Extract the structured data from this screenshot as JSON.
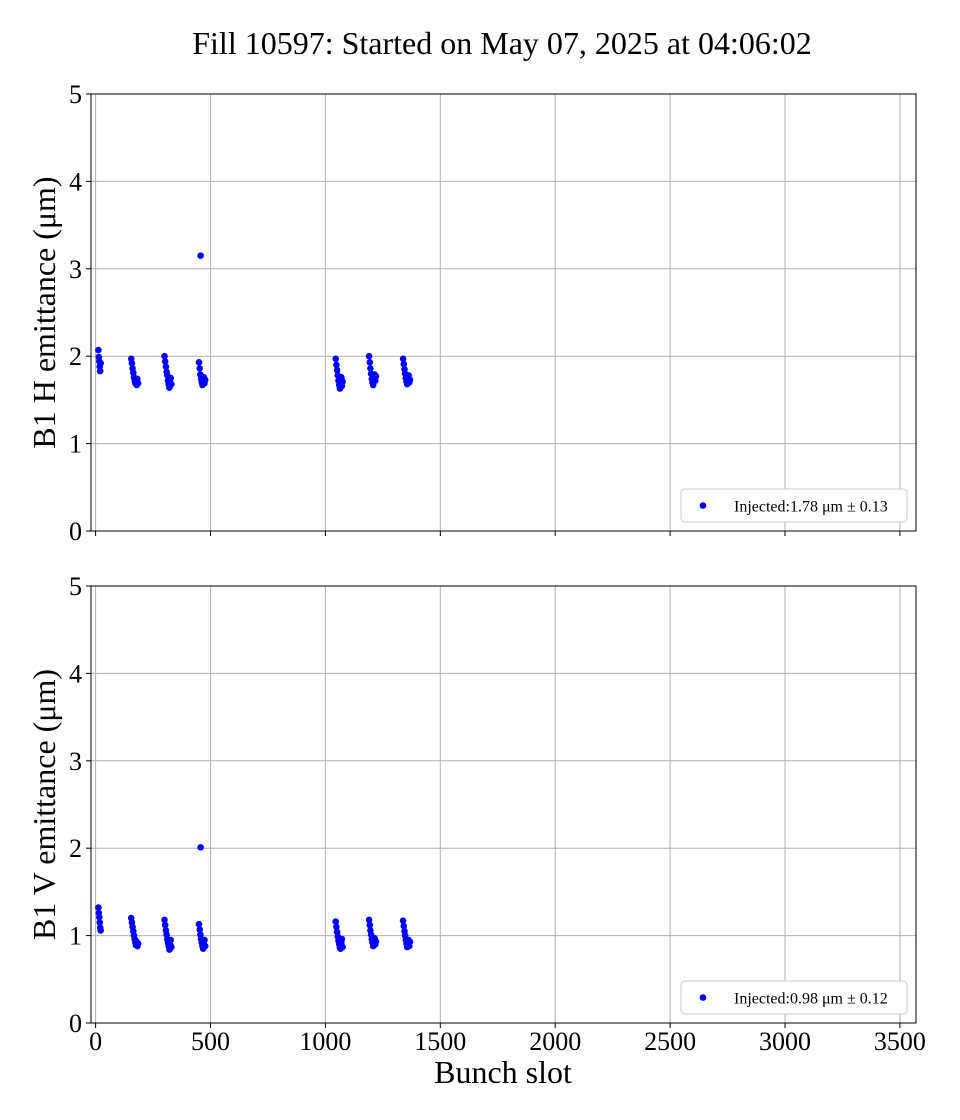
{
  "figure": {
    "title": "Fill 10597: Started on May 07, 2025 at 04:06:02",
    "xlabel": "Bunch slot"
  },
  "colors": {
    "marker": "#0000ff",
    "grid": "#b0b0b0",
    "axes": "#000000"
  },
  "chart_data": [
    {
      "type": "scatter",
      "ylabel": "B1 H emittance (μm)",
      "xlim": [
        -20,
        3570
      ],
      "ylim": [
        0,
        5
      ],
      "xticks": [
        0,
        500,
        1000,
        1500,
        2000,
        2500,
        3000,
        3500
      ],
      "yticks": [
        0,
        1,
        2,
        3,
        4,
        5
      ],
      "grid": true,
      "legend_position": "lower right",
      "series": [
        {
          "name": "Injected:1.78 μm ± 0.13",
          "x": [
            12,
            14,
            16,
            18,
            20,
            22,
            155,
            158,
            161,
            164,
            167,
            170,
            173,
            176,
            179,
            182,
            185,
            300,
            303,
            306,
            309,
            312,
            315,
            318,
            321,
            324,
            327,
            330,
            450,
            453,
            456,
            459,
            462,
            465,
            468,
            471,
            474,
            477,
            1045,
            1048,
            1051,
            1054,
            1057,
            1060,
            1063,
            1066,
            1069,
            1072,
            1075,
            1190,
            1193,
            1196,
            1199,
            1202,
            1205,
            1208,
            1211,
            1214,
            1217,
            1220,
            1338,
            1341,
            1344,
            1347,
            1350,
            1353,
            1356,
            1359,
            1362,
            1365,
            1368,
            457
          ],
          "y": [
            2.07,
            1.99,
            1.94,
            1.88,
            1.83,
            1.92,
            1.97,
            1.92,
            1.86,
            1.81,
            1.76,
            1.72,
            1.69,
            1.71,
            1.67,
            1.74,
            1.69,
            2.0,
            1.94,
            1.88,
            1.82,
            1.78,
            1.72,
            1.68,
            1.64,
            1.7,
            1.75,
            1.68,
            1.93,
            1.86,
            1.79,
            1.74,
            1.7,
            1.67,
            1.72,
            1.76,
            1.69,
            1.73,
            1.97,
            1.9,
            1.84,
            1.78,
            1.72,
            1.67,
            1.63,
            1.7,
            1.76,
            1.66,
            1.71,
            2.0,
            1.93,
            1.86,
            1.8,
            1.74,
            1.7,
            1.67,
            1.75,
            1.79,
            1.72,
            1.77,
            1.97,
            1.91,
            1.85,
            1.8,
            1.75,
            1.71,
            1.68,
            1.74,
            1.78,
            1.7,
            1.73,
            3.15
          ]
        }
      ]
    },
    {
      "type": "scatter",
      "ylabel": "B1 V emittance (μm)",
      "xlim": [
        -20,
        3570
      ],
      "ylim": [
        0,
        5
      ],
      "xticks": [
        0,
        500,
        1000,
        1500,
        2000,
        2500,
        3000,
        3500
      ],
      "yticks": [
        0,
        1,
        2,
        3,
        4,
        5
      ],
      "grid": true,
      "legend_position": "lower right",
      "series": [
        {
          "name": "Injected:0.98 μm ± 0.12",
          "x": [
            12,
            14,
            16,
            18,
            20,
            22,
            155,
            158,
            161,
            164,
            167,
            170,
            173,
            176,
            179,
            182,
            185,
            300,
            303,
            306,
            309,
            312,
            315,
            318,
            321,
            324,
            327,
            330,
            450,
            453,
            456,
            459,
            462,
            465,
            468,
            471,
            474,
            477,
            1045,
            1048,
            1051,
            1054,
            1057,
            1060,
            1063,
            1066,
            1069,
            1072,
            1075,
            1190,
            1193,
            1196,
            1199,
            1202,
            1205,
            1208,
            1211,
            1214,
            1217,
            1220,
            1338,
            1341,
            1344,
            1347,
            1350,
            1353,
            1356,
            1359,
            1362,
            1365,
            1368,
            457
          ],
          "y": [
            1.32,
            1.26,
            1.21,
            1.15,
            1.09,
            1.06,
            1.2,
            1.15,
            1.1,
            1.05,
            1.0,
            0.96,
            0.92,
            0.89,
            0.93,
            0.88,
            0.91,
            1.18,
            1.12,
            1.06,
            1.01,
            0.96,
            0.92,
            0.88,
            0.84,
            0.9,
            0.95,
            0.87,
            1.13,
            1.07,
            1.01,
            0.96,
            0.92,
            0.88,
            0.85,
            0.91,
            0.95,
            0.88,
            1.16,
            1.1,
            1.04,
            0.99,
            0.94,
            0.9,
            0.86,
            0.85,
            0.92,
            0.96,
            0.87,
            1.18,
            1.12,
            1.06,
            1.01,
            0.96,
            0.92,
            0.88,
            0.94,
            0.97,
            0.9,
            0.93,
            1.17,
            1.11,
            1.05,
            1.0,
            0.95,
            0.91,
            0.87,
            0.9,
            0.95,
            0.88,
            0.93,
            2.01
          ]
        }
      ]
    }
  ]
}
